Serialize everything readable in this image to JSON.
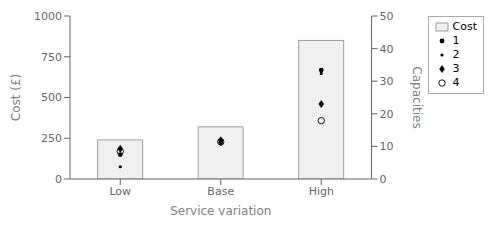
{
  "chart_data": {
    "type": "bar",
    "xlabel": "Service variation",
    "ylabel": "Cost (£)",
    "y2label": "Capacities",
    "categories": [
      "Low",
      "Base",
      "High"
    ],
    "series": [
      {
        "name": "Cost",
        "type": "bar",
        "color": "#f0f0f0",
        "values": [
          240,
          320,
          850
        ]
      },
      {
        "name": "1",
        "type": "scatter",
        "marker": "dot",
        "color": "black",
        "values": [
          150,
          222,
          668
        ]
      },
      {
        "name": "2",
        "type": "scatter",
        "marker": "small_dot",
        "color": "black",
        "values": [
          75,
          215,
          648
        ]
      },
      {
        "name": "3",
        "type": "scatter",
        "marker": "diamond",
        "color": "black",
        "values": [
          185,
          238,
          460
        ]
      },
      {
        "name": "4",
        "type": "scatter",
        "marker": "open_circle",
        "color": "black",
        "values": [
          170,
          228,
          358
        ]
      }
    ],
    "ylim": [
      0,
      1000
    ],
    "yticks": [
      0,
      250,
      500,
      750,
      1000
    ],
    "y2lim": [
      0,
      50
    ],
    "y2ticks": [
      0,
      10,
      20,
      30,
      40,
      50
    ],
    "legend": "upper right"
  }
}
